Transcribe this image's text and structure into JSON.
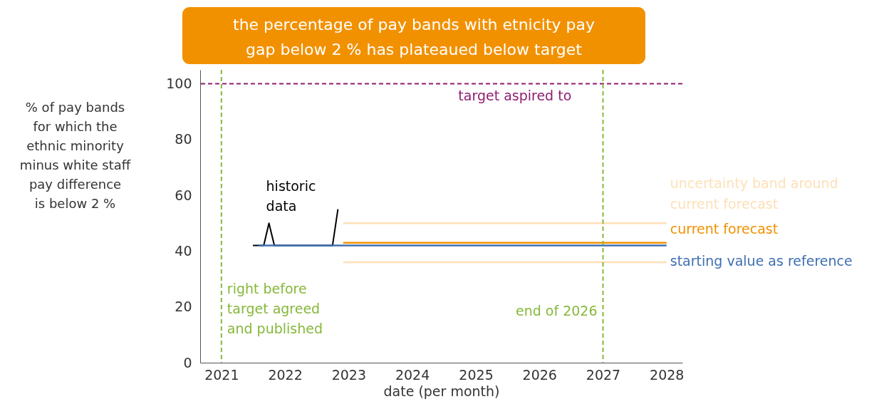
{
  "chart_data": {
    "type": "line",
    "title": "the percentage of pay bands with etnicity pay\ngap below 2 % has plateaued below target",
    "xlabel": "date (per month)",
    "ylabel": "% of pay bands\nfor which the\nethnic minority\nminus white staff\npay difference\nis below 2 %",
    "xlim": [
      "2020-09",
      "2028-04"
    ],
    "xticks": [
      "2021",
      "2022",
      "2023",
      "2024",
      "2025",
      "2026",
      "2027",
      "2028"
    ],
    "ylim": [
      0,
      105
    ],
    "yticks": [
      0,
      20,
      40,
      60,
      80,
      100
    ],
    "series": [
      {
        "name": "historic\ndata",
        "color": "#000000",
        "x": [
          "2021-07",
          "2021-09",
          "2021-10",
          "2021-11",
          "2022-10",
          "2022-11"
        ],
        "values": [
          42,
          42,
          50,
          42,
          42,
          55
        ]
      },
      {
        "name": "starting value as reference",
        "color": "#3f6fb0",
        "x": [
          "2021-08",
          "2028"
        ],
        "values": [
          42,
          42
        ]
      },
      {
        "name": "current forecast",
        "color": "#f29100",
        "x": [
          "2022-12",
          "2028"
        ],
        "values": [
          43,
          43
        ]
      },
      {
        "name": "uncertainty band around\ncurrent forecast",
        "color": "#fde0b8",
        "x": [
          "2022-12",
          "2028"
        ],
        "values": [
          50,
          50
        ]
      },
      {
        "color": "#fde0b8",
        "x": [
          "2022-12",
          "2028"
        ],
        "values": [
          36,
          36
        ]
      }
    ],
    "ref_lines": [
      {
        "axis": "y",
        "value": 100,
        "label": "target aspired to",
        "color": "#8e1e6e",
        "line_style": "dashed"
      },
      {
        "axis": "x",
        "value": "2021",
        "label": "right before\ntarget agreed\nand published",
        "color": "#86b83a",
        "line_style": "dashed"
      },
      {
        "axis": "x",
        "value": "2027",
        "label": "end of 2026",
        "color": "#86b83a",
        "line_style": "dashed"
      }
    ],
    "grid": false,
    "marker": "none",
    "line_style": "solid"
  }
}
